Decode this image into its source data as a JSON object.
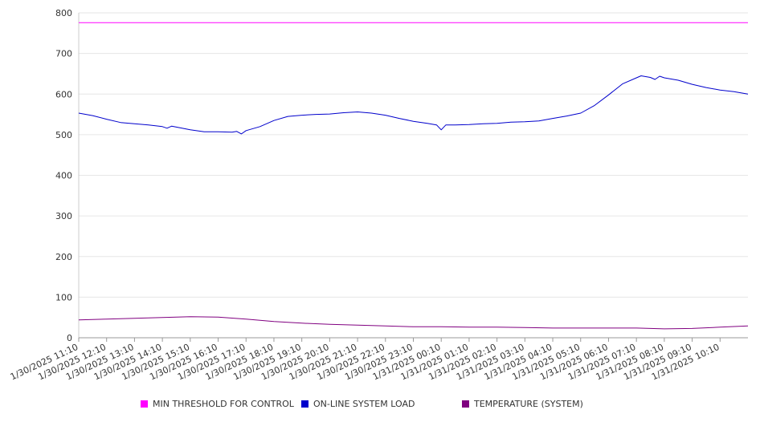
{
  "chart_data": {
    "type": "line",
    "title": "",
    "xlabel": "",
    "ylabel": "",
    "ylim": [
      0,
      800
    ],
    "y_ticks": [
      "0",
      "100",
      "200",
      "300",
      "400",
      "500",
      "600",
      "700",
      "800"
    ],
    "x_tick_labels": [
      "1/30/2025 11:10",
      "1/30/2025 12:10",
      "1/30/2025 13:10",
      "1/30/2025 14:10",
      "1/30/2025 15:10",
      "1/30/2025 16:10",
      "1/30/2025 17:10",
      "1/30/2025 18:10",
      "1/30/2025 19:10",
      "1/30/2025 20:10",
      "1/30/2025 21:10",
      "1/30/2025 22:10",
      "1/30/2025 23:10",
      "1/31/2025 00:10",
      "1/31/2025 01:10",
      "1/31/2025 02:10",
      "1/31/2025 03:10",
      "1/31/2025 04:10",
      "1/31/2025 05:10",
      "1/31/2025 06:10",
      "1/31/2025 07:10",
      "1/31/2025 08:10",
      "1/31/2025 09:10",
      "1/31/2025 10:10"
    ],
    "x_start": "1/30/2025 11:10",
    "x_end": "1/31/2025 11:10",
    "grid": true,
    "legend_position": "bottom",
    "series": [
      {
        "name": "MIN THRESHOLD FOR CONTROL",
        "color": "#ff00ff",
        "x": [
          "1/30/2025 11:10",
          "1/31/2025 11:10"
        ],
        "values": [
          776,
          776
        ]
      },
      {
        "name": "ON-LINE SYSTEM LOAD",
        "color": "#0000cc",
        "x": [
          "1/30/2025 11:10",
          "1/30/2025 11:40",
          "1/30/2025 12:10",
          "1/30/2025 12:40",
          "1/30/2025 13:10",
          "1/30/2025 13:40",
          "1/30/2025 14:10",
          "1/30/2025 14:20",
          "1/30/2025 14:30",
          "1/30/2025 15:10",
          "1/30/2025 15:40",
          "1/30/2025 16:10",
          "1/30/2025 16:40",
          "1/30/2025 16:50",
          "1/30/2025 17:00",
          "1/30/2025 17:10",
          "1/30/2025 17:40",
          "1/30/2025 18:10",
          "1/30/2025 18:40",
          "1/30/2025 19:10",
          "1/30/2025 19:40",
          "1/30/2025 20:10",
          "1/30/2025 20:40",
          "1/30/2025 21:10",
          "1/30/2025 21:40",
          "1/30/2025 22:10",
          "1/30/2025 22:40",
          "1/30/2025 23:10",
          "1/30/2025 23:40",
          "1/31/2025 00:00",
          "1/31/2025 00:10",
          "1/31/2025 00:20",
          "1/31/2025 00:40",
          "1/31/2025 01:10",
          "1/31/2025 01:40",
          "1/31/2025 02:10",
          "1/31/2025 02:40",
          "1/31/2025 03:10",
          "1/31/2025 03:40",
          "1/31/2025 04:10",
          "1/31/2025 04:40",
          "1/31/2025 05:10",
          "1/31/2025 05:40",
          "1/31/2025 06:10",
          "1/31/2025 06:40",
          "1/31/2025 07:10",
          "1/31/2025 07:20",
          "1/31/2025 07:40",
          "1/31/2025 07:50",
          "1/31/2025 08:00",
          "1/31/2025 08:10",
          "1/31/2025 08:40",
          "1/31/2025 09:10",
          "1/31/2025 09:40",
          "1/31/2025 10:10",
          "1/31/2025 10:40",
          "1/31/2025 11:10"
        ],
        "values": [
          553,
          547,
          538,
          530,
          527,
          524,
          520,
          516,
          521,
          512,
          507,
          507,
          506,
          508,
          502,
          510,
          520,
          535,
          545,
          548,
          550,
          551,
          554,
          556,
          553,
          548,
          540,
          533,
          528,
          524,
          512,
          524,
          524,
          525,
          527,
          528,
          531,
          532,
          534,
          540,
          546,
          553,
          572,
          598,
          625,
          640,
          645,
          641,
          636,
          644,
          640,
          634,
          624,
          616,
          610,
          606,
          600
        ]
      },
      {
        "name": "TEMPERATURE (SYSTEM)",
        "color": "#800080",
        "x": [
          "1/30/2025 11:10",
          "1/30/2025 12:10",
          "1/30/2025 13:10",
          "1/30/2025 14:10",
          "1/30/2025 15:10",
          "1/30/2025 16:10",
          "1/30/2025 17:10",
          "1/30/2025 18:10",
          "1/30/2025 19:10",
          "1/30/2025 20:10",
          "1/30/2025 21:10",
          "1/30/2025 22:10",
          "1/30/2025 23:10",
          "1/31/2025 00:10",
          "1/31/2025 01:10",
          "1/31/2025 02:10",
          "1/31/2025 03:10",
          "1/31/2025 04:10",
          "1/31/2025 05:10",
          "1/31/2025 06:10",
          "1/31/2025 07:10",
          "1/31/2025 08:10",
          "1/31/2025 09:10",
          "1/31/2025 10:10",
          "1/31/2025 11:10"
        ],
        "values": [
          44,
          46,
          48,
          50,
          52,
          51,
          46,
          40,
          36,
          33,
          31,
          29,
          27,
          27,
          26,
          26,
          25,
          24,
          24,
          24,
          24,
          22,
          23,
          26,
          29
        ]
      }
    ]
  }
}
